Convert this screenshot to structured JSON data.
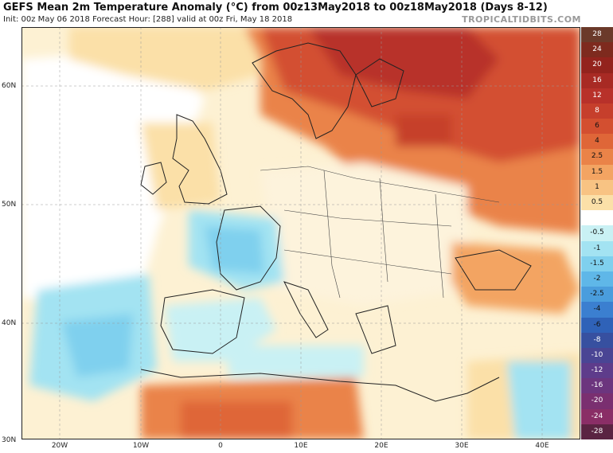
{
  "header": {
    "title": "GEFS Mean 2m Temperature Anomaly (°C) from 00z13May2018 to 00z18May2018 (Days 8-12)",
    "subtitle": "Init: 00z May 06 2018   Forecast Hour: [288]   valid at 00z Fri, May 18 2018",
    "brand": "TROPICALTIDBITS.COM"
  },
  "axes": {
    "lat_labels": [
      "60N",
      "50N",
      "40N",
      "30N"
    ],
    "lon_labels": [
      "20W",
      "10W",
      "0",
      "10E",
      "20E",
      "30E",
      "40E"
    ]
  },
  "colorbar": {
    "levels": [
      {
        "label": "28",
        "color": "#6b3a2a"
      },
      {
        "label": "24",
        "color": "#7e2a1e"
      },
      {
        "label": "20",
        "color": "#93231d"
      },
      {
        "label": "16",
        "color": "#a82a24"
      },
      {
        "label": "12",
        "color": "#b8312a"
      },
      {
        "label": "8",
        "color": "#c63f2c"
      },
      {
        "label": "6",
        "color": "#d34f30"
      },
      {
        "label": "4",
        "color": "#df6638"
      },
      {
        "label": "2.5",
        "color": "#ea8348"
      },
      {
        "label": "1.5",
        "color": "#f3a462"
      },
      {
        "label": "1",
        "color": "#f8c383"
      },
      {
        "label": "0.5",
        "color": "#fbe0a8"
      },
      {
        "label": "",
        "color": "#ffffff"
      },
      {
        "label": "-0.5",
        "color": "#c9f1f4"
      },
      {
        "label": "-1",
        "color": "#a3e3f2"
      },
      {
        "label": "-1.5",
        "color": "#7fd0ee"
      },
      {
        "label": "-2",
        "color": "#5fb7e8"
      },
      {
        "label": "-2.5",
        "color": "#4a9ddd"
      },
      {
        "label": "-4",
        "color": "#3b7fd0"
      },
      {
        "label": "-6",
        "color": "#2f62b8"
      },
      {
        "label": "-8",
        "color": "#3750a0"
      },
      {
        "label": "-10",
        "color": "#4a4594"
      },
      {
        "label": "-12",
        "color": "#5e3c8b"
      },
      {
        "label": "-16",
        "color": "#6c357e"
      },
      {
        "label": "-20",
        "color": "#7a2f70"
      },
      {
        "label": "-24",
        "color": "#8a2e66"
      },
      {
        "label": "-28",
        "color": "#5a2442"
      }
    ]
  }
}
